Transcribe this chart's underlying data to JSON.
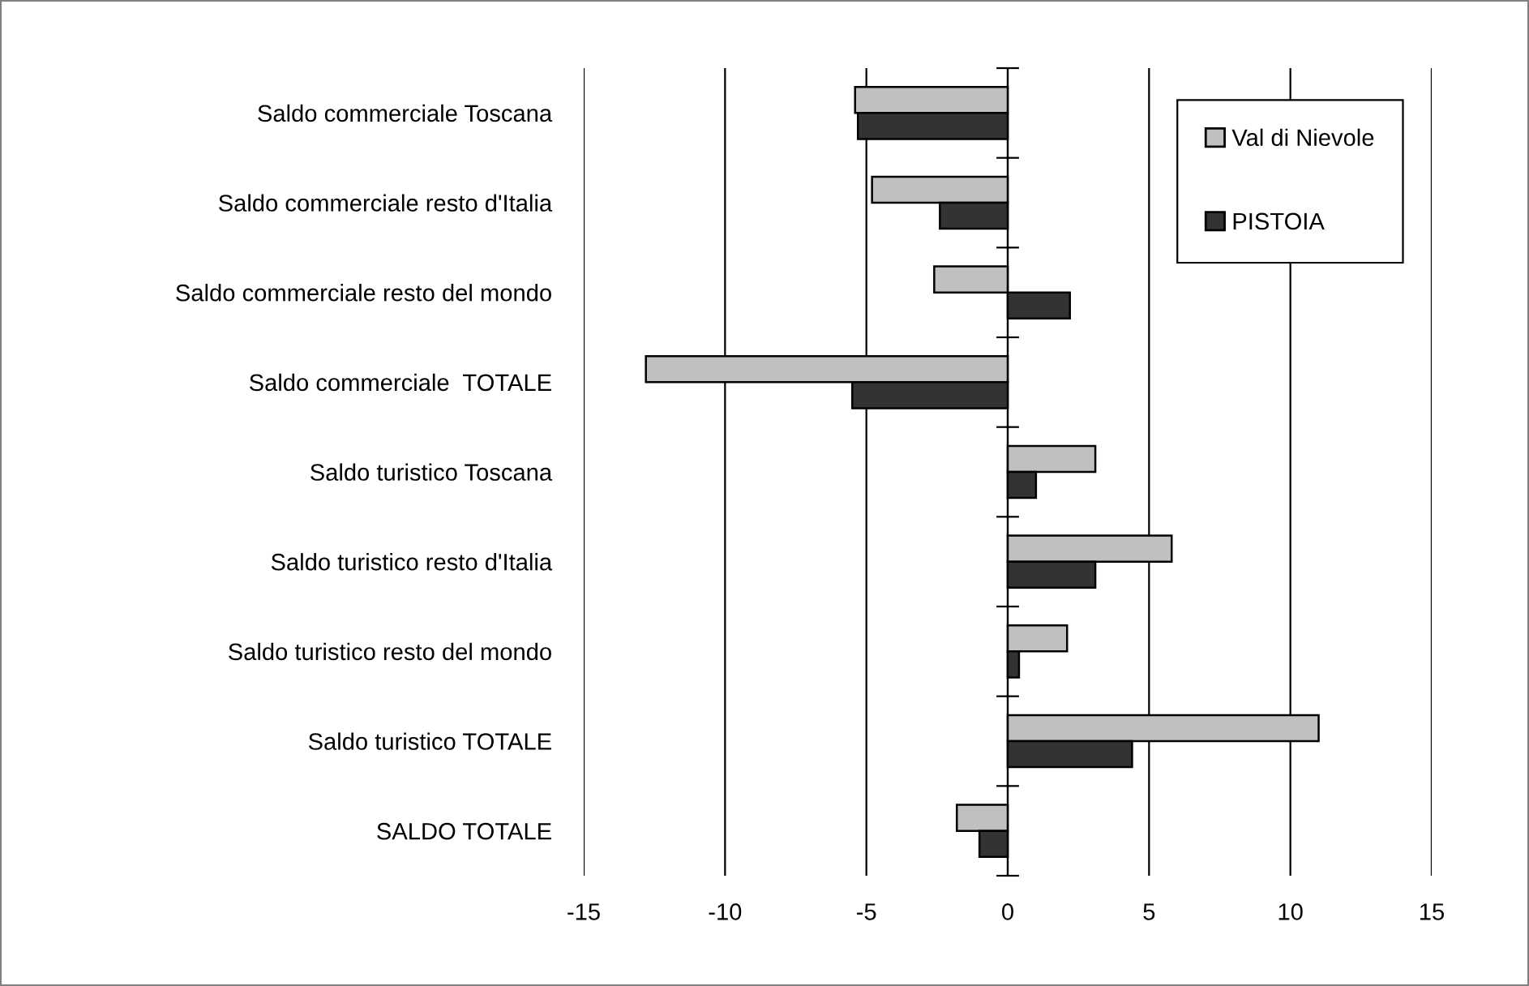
{
  "chart_data": {
    "type": "bar",
    "orientation": "horizontal",
    "categories": [
      "Saldo commerciale Toscana",
      "Saldo commerciale resto d'Italia",
      "Saldo commerciale resto del mondo",
      "Saldo commerciale  TOTALE",
      "Saldo turistico Toscana",
      "Saldo turistico resto d'Italia",
      "Saldo turistico resto del mondo",
      "Saldo turistico TOTALE",
      "SALDO TOTALE"
    ],
    "series": [
      {
        "name": "Val di Nievole",
        "color": "#c0c0c0",
        "values": [
          -5.4,
          -4.8,
          -2.6,
          -12.8,
          3.1,
          5.8,
          2.1,
          11.0,
          -1.8
        ]
      },
      {
        "name": "PISTOIA",
        "color": "#333333",
        "values": [
          -5.3,
          -2.4,
          2.2,
          -5.5,
          1.0,
          3.1,
          0.4,
          4.4,
          -1.0
        ]
      }
    ],
    "xlim": [
      -15,
      15
    ],
    "xticks": [
      -15,
      -10,
      -5,
      0,
      5,
      10,
      15
    ],
    "grid": "x",
    "legend": "top right"
  }
}
